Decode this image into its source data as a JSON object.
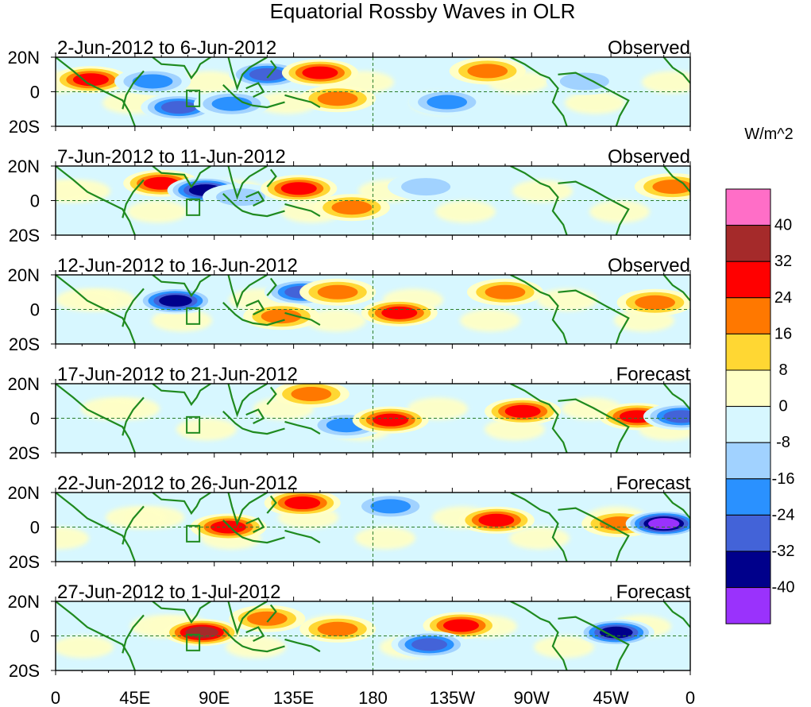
{
  "chart_data": {
    "type": "heatmap",
    "title": "Equatorial Rossby Waves in OLR",
    "units_label": "W/m^2",
    "variable": "OLR",
    "x_ticks": [
      "0",
      "45E",
      "90E",
      "135E",
      "180",
      "135W",
      "90W",
      "45W",
      "0"
    ],
    "x_range": [
      0,
      360
    ],
    "y_ticks": [
      "20N",
      "0",
      "20S"
    ],
    "y_range": [
      -20,
      20
    ],
    "colorbar": {
      "levels": [
        -40,
        -32,
        -24,
        -16,
        -8,
        0,
        8,
        16,
        24,
        32,
        40
      ],
      "level_labels": [
        "40",
        "32",
        "24",
        "16",
        "8",
        "0",
        "-8",
        "-16",
        "-24",
        "-32",
        "-40"
      ],
      "colors": [
        "#ff6ec7",
        "#a52a2a",
        "#ff0000",
        "#ff7800",
        "#ffd733",
        "#ffffc6",
        "#d7f7ff",
        "#a1d2ff",
        "#2a91ff",
        "#4363d8",
        "#00008b",
        "#9a32fc"
      ]
    },
    "panels": [
      {
        "date_range": "2-Jun-2012 to 6-Jun-2012",
        "status": "Observed",
        "anomalies": [
          {
            "lon": 20,
            "lat": 7,
            "value": 18
          },
          {
            "lon": 55,
            "lat": 6,
            "value": -12
          },
          {
            "lon": 70,
            "lat": -9,
            "value": -22
          },
          {
            "lon": 100,
            "lat": -7,
            "value": -9
          },
          {
            "lon": 120,
            "lat": 10,
            "value": -22
          },
          {
            "lon": 150,
            "lat": 11,
            "value": 18
          },
          {
            "lon": 160,
            "lat": -4,
            "value": 10
          },
          {
            "lon": 222,
            "lat": -6,
            "value": -10
          },
          {
            "lon": 245,
            "lat": 12,
            "value": 12
          },
          {
            "lon": 300,
            "lat": 6,
            "value": -8
          }
        ]
      },
      {
        "date_range": "7-Jun-2012 to 11-Jun-2012",
        "status": "Observed",
        "anomalies": [
          {
            "lon": 60,
            "lat": 10,
            "value": 18
          },
          {
            "lon": 85,
            "lat": 6,
            "value": -26
          },
          {
            "lon": 105,
            "lat": 2,
            "value": -8
          },
          {
            "lon": 138,
            "lat": 7,
            "value": 18
          },
          {
            "lon": 168,
            "lat": -4,
            "value": 10
          },
          {
            "lon": 210,
            "lat": 8,
            "value": -8
          },
          {
            "lon": 350,
            "lat": 8,
            "value": 10
          }
        ]
      },
      {
        "date_range": "12-Jun-2012 to 16-Jun-2012",
        "status": "Observed",
        "anomalies": [
          {
            "lon": 68,
            "lat": 5,
            "value": -28
          },
          {
            "lon": 140,
            "lat": 10,
            "value": -20
          },
          {
            "lon": 160,
            "lat": 10,
            "value": 12
          },
          {
            "lon": 128,
            "lat": -4,
            "value": 10
          },
          {
            "lon": 195,
            "lat": -2,
            "value": 18
          },
          {
            "lon": 255,
            "lat": 10,
            "value": 12
          },
          {
            "lon": 340,
            "lat": 4,
            "value": 16
          }
        ]
      },
      {
        "date_range": "17-Jun-2012 to 21-Jun-2012",
        "status": "Forecast",
        "anomalies": [
          {
            "lon": 145,
            "lat": 14,
            "value": 16
          },
          {
            "lon": 165,
            "lat": -4,
            "value": -14
          },
          {
            "lon": 190,
            "lat": -1,
            "value": 18
          },
          {
            "lon": 265,
            "lat": 4,
            "value": 18
          },
          {
            "lon": 330,
            "lat": 1,
            "value": 18
          },
          {
            "lon": 355,
            "lat": 1,
            "value": -18
          }
        ]
      },
      {
        "date_range": "22-Jun-2012 to 26-Jun-2012",
        "status": "Forecast",
        "anomalies": [
          {
            "lon": 98,
            "lat": 0,
            "value": 18
          },
          {
            "lon": 140,
            "lat": 14,
            "value": 20
          },
          {
            "lon": 190,
            "lat": 12,
            "value": -16
          },
          {
            "lon": 250,
            "lat": 4,
            "value": 22
          },
          {
            "lon": 320,
            "lat": 2,
            "value": 14
          },
          {
            "lon": 345,
            "lat": 2,
            "value": -34
          }
        ]
      },
      {
        "date_range": "27-Jun-2012 to 1-Jul-2012",
        "status": "Forecast",
        "anomalies": [
          {
            "lon": 83,
            "lat": 2,
            "value": 26
          },
          {
            "lon": 120,
            "lat": 10,
            "value": 12
          },
          {
            "lon": 160,
            "lat": 4,
            "value": 10
          },
          {
            "lon": 230,
            "lat": 6,
            "value": 18
          },
          {
            "lon": 212,
            "lat": -5,
            "value": -18
          },
          {
            "lon": 318,
            "lat": 2,
            "value": -28
          }
        ]
      }
    ]
  }
}
